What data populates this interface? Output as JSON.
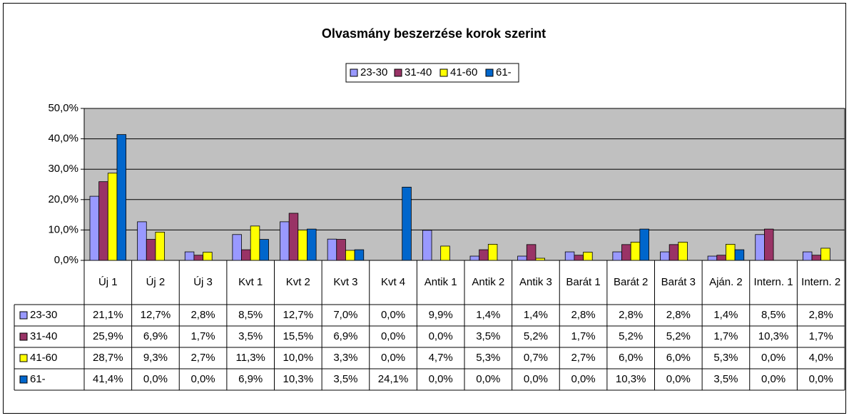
{
  "chart_data": {
    "type": "bar",
    "title": "Olvasmány beszerzése korok szerint",
    "categories": [
      "Új 1",
      "Új 2",
      "Új 3",
      "Kvt 1",
      "Kvt 2",
      "Kvt 3",
      "Kvt 4",
      "Antik 1",
      "Antik 2",
      "Antik 3",
      "Barát 1",
      "Barát 2",
      "Barát 3",
      "Aján. 2",
      "Intern. 1",
      "Intern. 2"
    ],
    "series": [
      {
        "name": "23-30",
        "color": "#9999ff",
        "values": [
          21.1,
          12.7,
          2.8,
          8.5,
          12.7,
          7.0,
          0.0,
          9.9,
          1.4,
          1.4,
          2.8,
          2.8,
          2.8,
          1.4,
          8.5,
          2.8
        ],
        "value_labels": [
          "21,1%",
          "12,7%",
          "2,8%",
          "8,5%",
          "12,7%",
          "7,0%",
          "0,0%",
          "9,9%",
          "1,4%",
          "1,4%",
          "2,8%",
          "2,8%",
          "2,8%",
          "1,4%",
          "8,5%",
          "2,8%"
        ]
      },
      {
        "name": "31-40",
        "color": "#993366",
        "values": [
          25.9,
          6.9,
          1.7,
          3.5,
          15.5,
          6.9,
          0.0,
          0.0,
          3.5,
          5.2,
          1.7,
          5.2,
          5.2,
          1.7,
          10.3,
          1.7
        ],
        "value_labels": [
          "25,9%",
          "6,9%",
          "1,7%",
          "3,5%",
          "15,5%",
          "6,9%",
          "0,0%",
          "0,0%",
          "3,5%",
          "5,2%",
          "1,7%",
          "5,2%",
          "5,2%",
          "1,7%",
          "10,3%",
          "1,7%"
        ]
      },
      {
        "name": "41-60",
        "color": "#ffff00",
        "values": [
          28.7,
          9.3,
          2.7,
          11.3,
          10.0,
          3.3,
          0.0,
          4.7,
          5.3,
          0.7,
          2.7,
          6.0,
          6.0,
          5.3,
          0.0,
          4.0
        ],
        "value_labels": [
          "28,7%",
          "9,3%",
          "2,7%",
          "11,3%",
          "10,0%",
          "3,3%",
          "0,0%",
          "4,7%",
          "5,3%",
          "0,7%",
          "2,7%",
          "6,0%",
          "6,0%",
          "5,3%",
          "0,0%",
          "4,0%"
        ]
      },
      {
        "name": "61-",
        "color": "#0066cc",
        "values": [
          41.4,
          0.0,
          0.0,
          6.9,
          10.3,
          3.5,
          24.1,
          0.0,
          0.0,
          0.0,
          0.0,
          10.3,
          0.0,
          3.5,
          0.0,
          0.0
        ],
        "value_labels": [
          "41,4%",
          "0,0%",
          "0,0%",
          "6,9%",
          "10,3%",
          "3,5%",
          "24,1%",
          "0,0%",
          "0,0%",
          "0,0%",
          "0,0%",
          "10,3%",
          "0,0%",
          "3,5%",
          "0,0%",
          "0,0%"
        ]
      }
    ],
    "ylim": [
      0,
      50
    ],
    "yticks": [
      {
        "value": 0,
        "label": "0,0%"
      },
      {
        "value": 10,
        "label": "10,0%"
      },
      {
        "value": 20,
        "label": "20,0%"
      },
      {
        "value": 30,
        "label": "30,0%"
      },
      {
        "value": 40,
        "label": "40,0%"
      },
      {
        "value": 50,
        "label": "50,0%"
      }
    ],
    "grid": true,
    "legend": "top"
  }
}
